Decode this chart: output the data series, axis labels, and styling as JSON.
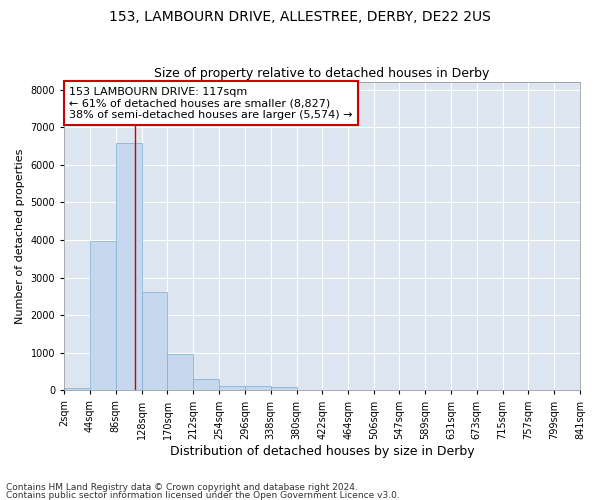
{
  "title1": "153, LAMBOURN DRIVE, ALLESTREE, DERBY, DE22 2US",
  "title2": "Size of property relative to detached houses in Derby",
  "xlabel": "Distribution of detached houses by size in Derby",
  "ylabel": "Number of detached properties",
  "footer1": "Contains HM Land Registry data © Crown copyright and database right 2024.",
  "footer2": "Contains public sector information licensed under the Open Government Licence v3.0.",
  "bin_edges": [
    2,
    44,
    86,
    128,
    170,
    212,
    254,
    296,
    338,
    380,
    422,
    464,
    506,
    547,
    589,
    631,
    673,
    715,
    757,
    799,
    841
  ],
  "bar_heights": [
    70,
    3980,
    6590,
    2620,
    960,
    310,
    130,
    110,
    90,
    0,
    0,
    0,
    0,
    0,
    0,
    0,
    0,
    0,
    0,
    0
  ],
  "bar_color": "#c5d8ee",
  "bar_edge_color": "#7aadd4",
  "vline_x": 117,
  "vline_color": "#cc0000",
  "annotation_text": "153 LAMBOURN DRIVE: 117sqm\n← 61% of detached houses are smaller (8,827)\n38% of semi-detached houses are larger (5,574) →",
  "annotation_box_edge": "#cc0000",
  "annotation_box_face": "#ffffff",
  "ylim": [
    0,
    8200
  ],
  "background_color": "#dde6f0",
  "grid_color": "#ffffff",
  "title1_fontsize": 10,
  "title2_fontsize": 9,
  "xlabel_fontsize": 9,
  "ylabel_fontsize": 8,
  "annotation_fontsize": 8,
  "tick_fontsize": 7,
  "footer_fontsize": 6.5
}
